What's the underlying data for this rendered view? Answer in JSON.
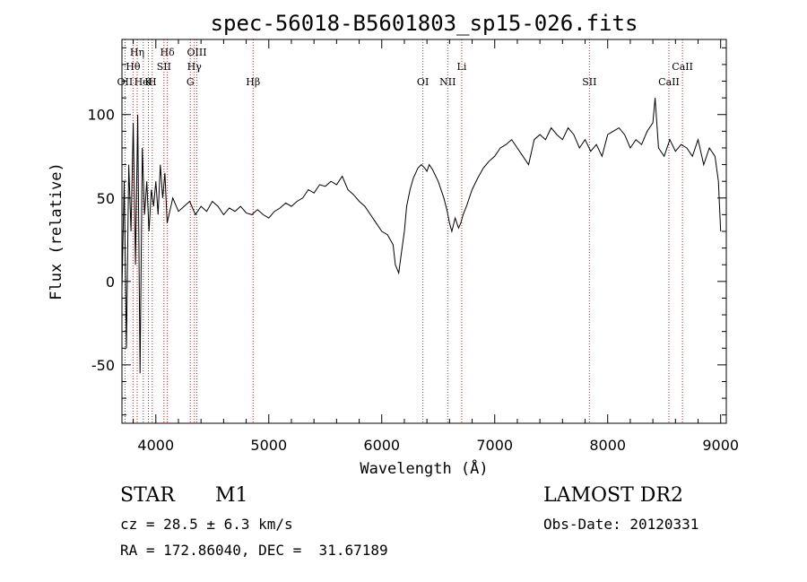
{
  "chart_data": {
    "type": "line",
    "title": "spec-56018-B5601803_sp15-026.fits",
    "xlabel": "Wavelength (Å)",
    "ylabel": "Flux (relative)",
    "xlim": [
      3700,
      9050
    ],
    "ylim": [
      -85,
      145
    ],
    "x_ticks": [
      4000,
      5000,
      6000,
      7000,
      8000,
      9000
    ],
    "y_ticks": [
      -50,
      0,
      50,
      100
    ],
    "grid": false,
    "series": [
      {
        "x": [
          3700,
          3720,
          3740,
          3760,
          3780,
          3800,
          3820,
          3840,
          3860,
          3880,
          3900,
          3920,
          3940,
          3960,
          3980,
          4000,
          4020,
          4040,
          4060,
          4080,
          4100,
          4150,
          4200,
          4250,
          4300,
          4350,
          4400,
          4450,
          4500,
          4550,
          4600,
          4650,
          4700,
          4750,
          4800,
          4850,
          4900,
          4950,
          5000,
          5050,
          5100,
          5150,
          5200,
          5250,
          5300,
          5350,
          5400,
          5450,
          5500,
          5550,
          5600,
          5650,
          5700,
          5750,
          5800,
          5850,
          5900,
          5950,
          6000,
          6050,
          6100,
          6120,
          6150,
          6180,
          6200,
          6220,
          6250,
          6280,
          6300,
          6320,
          6350,
          6380,
          6400,
          6420,
          6450,
          6500,
          6550,
          6580,
          6600,
          6620,
          6650,
          6680,
          6700,
          6720,
          6750,
          6800,
          6850,
          6900,
          6950,
          7000,
          7050,
          7100,
          7150,
          7200,
          7250,
          7300,
          7350,
          7400,
          7450,
          7500,
          7550,
          7600,
          7650,
          7700,
          7750,
          7800,
          7850,
          7900,
          7950,
          8000,
          8050,
          8100,
          8150,
          8200,
          8250,
          8300,
          8350,
          8400,
          8420,
          8450,
          8500,
          8550,
          8600,
          8650,
          8700,
          8750,
          8800,
          8850,
          8900,
          8950,
          8980,
          9000
        ],
        "y": [
          -5,
          60,
          -40,
          70,
          30,
          95,
          10,
          100,
          -55,
          80,
          40,
          60,
          30,
          55,
          45,
          60,
          40,
          70,
          50,
          65,
          35,
          50,
          42,
          45,
          48,
          40,
          45,
          42,
          48,
          45,
          40,
          44,
          42,
          45,
          41,
          40,
          43,
          40,
          38,
          42,
          44,
          47,
          45,
          48,
          50,
          55,
          53,
          58,
          57,
          60,
          58,
          63,
          55,
          52,
          48,
          45,
          40,
          35,
          30,
          28,
          22,
          10,
          5,
          20,
          30,
          45,
          55,
          62,
          65,
          68,
          70,
          68,
          66,
          70,
          67,
          60,
          50,
          42,
          35,
          30,
          38,
          32,
          35,
          40,
          45,
          55,
          62,
          68,
          72,
          75,
          80,
          82,
          85,
          80,
          75,
          70,
          85,
          88,
          85,
          92,
          88,
          85,
          92,
          88,
          80,
          85,
          78,
          82,
          75,
          88,
          90,
          92,
          88,
          80,
          85,
          82,
          90,
          95,
          110,
          80,
          75,
          85,
          78,
          82,
          80,
          75,
          85,
          70,
          80,
          75,
          60,
          30
        ]
      }
    ],
    "annotations": [
      {
        "label": "OII",
        "x": 3727
      },
      {
        "label": "Hθ",
        "x": 3798
      },
      {
        "label": "Hη",
        "x": 3835
      },
      {
        "label": "HeI",
        "x": 3889
      },
      {
        "label": "K",
        "x": 3934
      },
      {
        "label": "H",
        "x": 3968
      },
      {
        "label": "SII",
        "x": 4072
      },
      {
        "label": "Hδ",
        "x": 4102
      },
      {
        "label": "G",
        "x": 4305
      },
      {
        "label": "Hγ",
        "x": 4341
      },
      {
        "label": "OIII",
        "x": 4363
      },
      {
        "label": "Hβ",
        "x": 4861
      },
      {
        "label": "OI",
        "x": 6364
      },
      {
        "label": "NII",
        "x": 6584
      },
      {
        "label": "Li",
        "x": 6708
      },
      {
        "label": "SII",
        "x": 7838
      },
      {
        "label": "CaII",
        "x": 8542
      },
      {
        "label": "CaII",
        "x": 8662
      }
    ]
  },
  "info": {
    "object_class": "STAR",
    "subclass": "M1",
    "survey": "LAMOST DR2",
    "redshift": "cz = 28.5 ± 6.3 km/s",
    "obs_date": "Obs-Date: 20120331",
    "coords": "RA = 172.86040, DEC =  31.67189"
  }
}
